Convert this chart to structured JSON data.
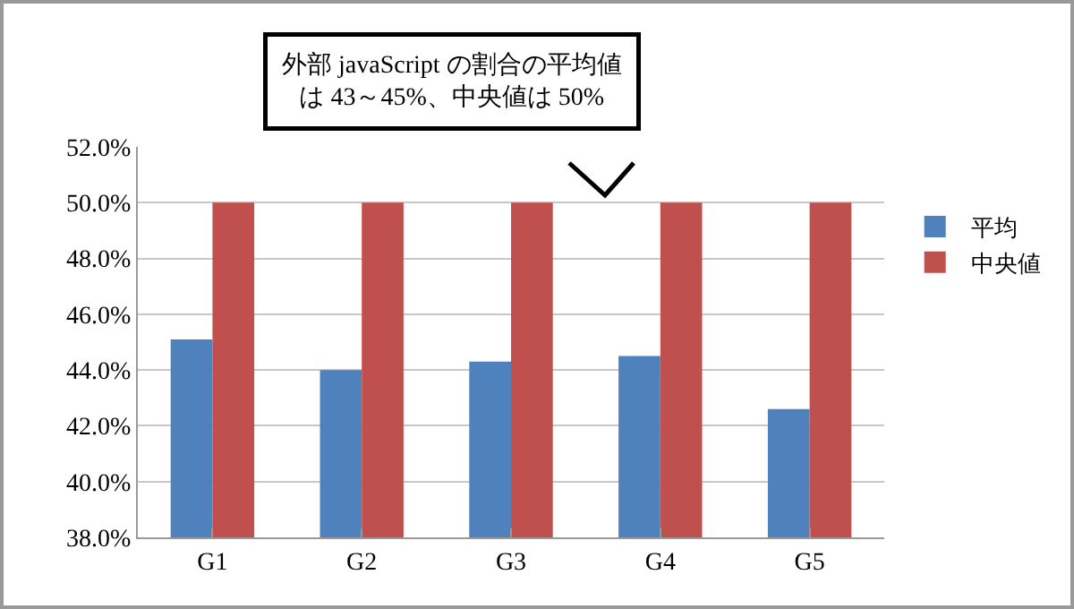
{
  "chart_data": {
    "type": "bar",
    "categories": [
      "G1",
      "G2",
      "G3",
      "G4",
      "G5"
    ],
    "series": [
      {
        "name": "平均",
        "color": "#4f81bd",
        "values": [
          45.1,
          44.0,
          44.3,
          44.5,
          42.6
        ]
      },
      {
        "name": "中央値",
        "color": "#c0504d",
        "values": [
          50,
          50,
          50,
          50,
          50
        ]
      }
    ],
    "ylim": [
      38,
      52
    ],
    "yticks": [
      {
        "value": 38,
        "label": "38.0%"
      },
      {
        "value": 40,
        "label": "40.0%"
      },
      {
        "value": 42,
        "label": "42.0%"
      },
      {
        "value": 44,
        "label": "44.0%"
      },
      {
        "value": 46,
        "label": "46.0%"
      },
      {
        "value": 48,
        "label": "48.0%"
      },
      {
        "value": 50,
        "label": "50.0%"
      },
      {
        "value": 52,
        "label": "52.0%"
      }
    ],
    "grid": "y",
    "legend": "right",
    "annotations": [
      "外部 javaScript の割合の平均値は 43～45%、中央値は 50%"
    ]
  }
}
